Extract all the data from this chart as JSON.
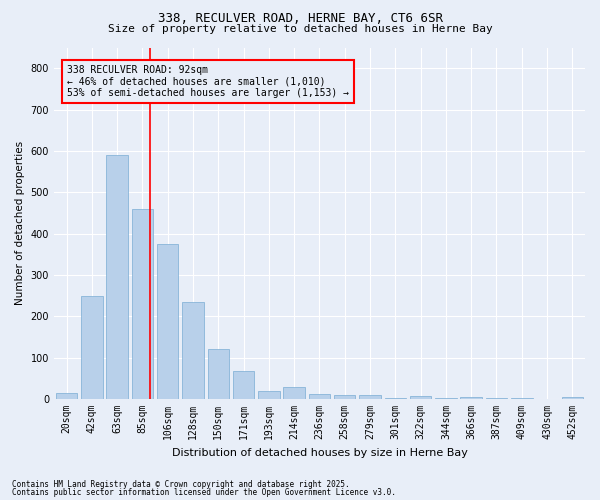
{
  "title_line1": "338, RECULVER ROAD, HERNE BAY, CT6 6SR",
  "title_line2": "Size of property relative to detached houses in Herne Bay",
  "xlabel": "Distribution of detached houses by size in Herne Bay",
  "ylabel": "Number of detached properties",
  "footnote_line1": "Contains HM Land Registry data © Crown copyright and database right 2025.",
  "footnote_line2": "Contains public sector information licensed under the Open Government Licence v3.0.",
  "categories": [
    "20sqm",
    "42sqm",
    "63sqm",
    "85sqm",
    "106sqm",
    "128sqm",
    "150sqm",
    "171sqm",
    "193sqm",
    "214sqm",
    "236sqm",
    "258sqm",
    "279sqm",
    "301sqm",
    "322sqm",
    "344sqm",
    "366sqm",
    "387sqm",
    "409sqm",
    "430sqm",
    "452sqm"
  ],
  "values": [
    15,
    250,
    590,
    460,
    375,
    235,
    120,
    68,
    20,
    30,
    12,
    10,
    10,
    3,
    8,
    3,
    5,
    3,
    2,
    0,
    4
  ],
  "bar_color": "#b8d0ea",
  "bar_edge_color": "#7aadd4",
  "background_color": "#e8eef8",
  "grid_color": "#ffffff",
  "ylim": [
    0,
    850
  ],
  "yticks": [
    0,
    100,
    200,
    300,
    400,
    500,
    600,
    700,
    800
  ],
  "annotation_box_text": "338 RECULVER ROAD: 92sqm\n← 46% of detached houses are smaller (1,010)\n53% of semi-detached houses are larger (1,153) →",
  "vline_color": "red",
  "annotation_bbox_edge": "red",
  "annotation_text_fontsize": 7,
  "vline_x": 3.3,
  "title_fontsize": 9,
  "subtitle_fontsize": 8,
  "ylabel_fontsize": 7.5,
  "xlabel_fontsize": 8,
  "tick_fontsize": 7,
  "footnote_fontsize": 5.5
}
